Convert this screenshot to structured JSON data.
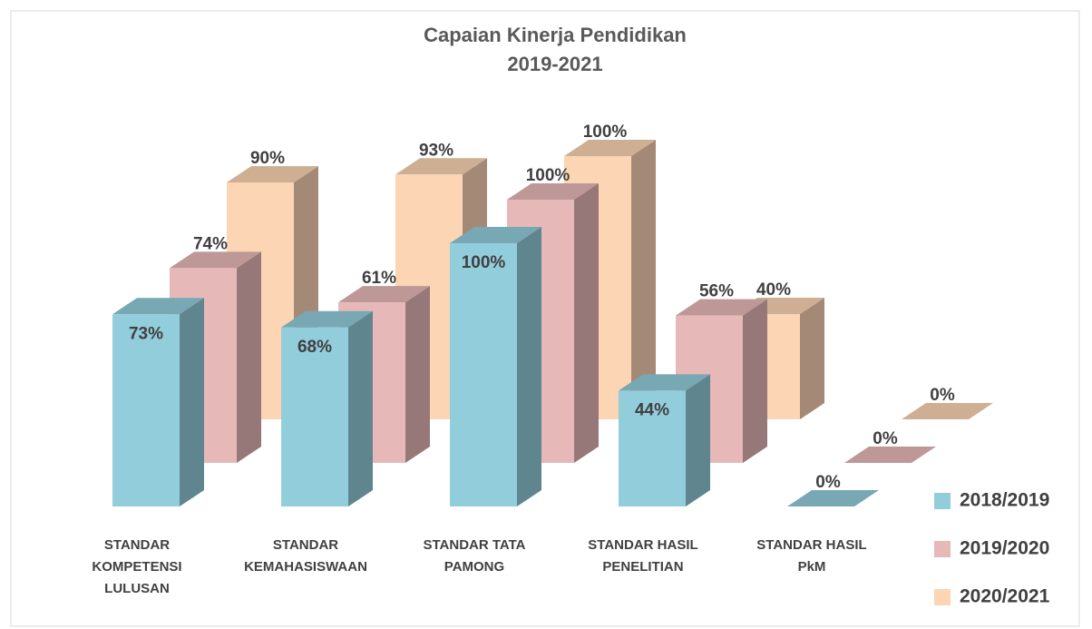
{
  "chart_data": {
    "type": "bar3d",
    "title": "Capaian Kinerja Pendidikan",
    "subtitle": "2019-2021",
    "categories": [
      "STANDAR KOMPETENSI LULUSAN",
      "STANDAR KEMAHASISWAAN",
      "STANDAR TATA PAMONG",
      "STANDAR HASIL PENELITIAN",
      "STANDAR HASIL PkM"
    ],
    "series": [
      {
        "name": "2018/2019",
        "color": "#92cddc",
        "values": [
          73,
          68,
          100,
          44,
          0
        ],
        "value_labels": [
          "73%",
          "68%",
          "100%",
          "44%",
          "0%"
        ]
      },
      {
        "name": "2019/2020",
        "color": "#e6b9b8",
        "values": [
          74,
          61,
          100,
          56,
          0
        ],
        "value_labels": [
          "74%",
          "61%",
          "100%",
          "56%",
          "0%"
        ]
      },
      {
        "name": "2020/2021",
        "color": "#fcd5b5",
        "values": [
          90,
          93,
          100,
          40,
          0
        ],
        "value_labels": [
          "90%",
          "93%",
          "100%",
          "40%",
          "0%"
        ]
      }
    ],
    "ylim": [
      0,
      100
    ],
    "legend": "right"
  }
}
